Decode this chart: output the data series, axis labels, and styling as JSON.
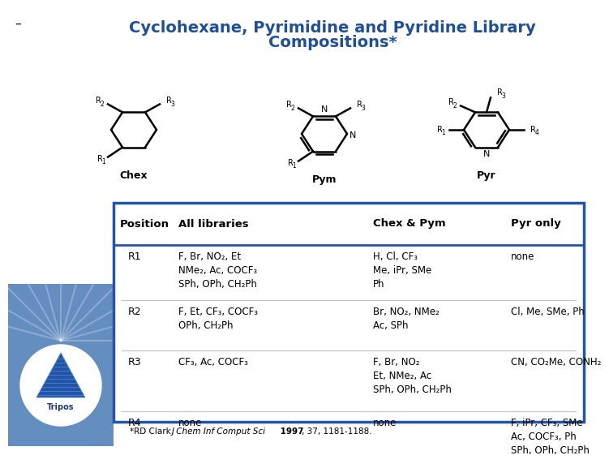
{
  "title_line1": "Cyclohexane, Pyrimidine and Pyridine Library",
  "title_line2": "Compositions*",
  "title_color": "#1F4E9C",
  "background_color": "#FFFFFF",
  "table_border_color": "#2255AA",
  "header_row": [
    "Position",
    "All libraries",
    "Chex & Pym",
    "Pyr only"
  ],
  "rows": [
    {
      "position": "R1",
      "all_libs": "F, Br, NO₂, Et\nNMe₂, Ac, COCF₃\nSPh, OPh, CH₂Ph",
      "chex_pym": "H, Cl, CF₃\nMe, iPr, SMe\nPh",
      "pyr_only": "none"
    },
    {
      "position": "R2",
      "all_libs": "F, Et, CF₃, COCF₃\nOPh, CH₂Ph",
      "chex_pym": "Br, NO₂, NMe₂\nAc, SPh",
      "pyr_only": "Cl, Me, SMe, Ph"
    },
    {
      "position": "R3",
      "all_libs": "CF₃, Ac, COCF₃",
      "chex_pym": "F, Br, NO₂\nEt, NMe₂, Ac\nSPh, OPh, CH₂Ph",
      "pyr_only": "CN, CO₂Me, CONH₂"
    },
    {
      "position": "R4",
      "all_libs": "none",
      "chex_pym": "none",
      "pyr_only": "F, iPr, CF₃, SMe\nAc, COCF₃, Ph\nSPh, OPh, CH₂Ph"
    }
  ],
  "chex_label": "Chex",
  "pym_label": "Pym",
  "pyr_label": "Pyr",
  "footnote_asterisk": "*RD Clark.  ",
  "footnote_italic": "J Chem Inf Comput Sci",
  "footnote_bold": " 1997",
  "footnote_rest": ", 37, 1181-1188."
}
